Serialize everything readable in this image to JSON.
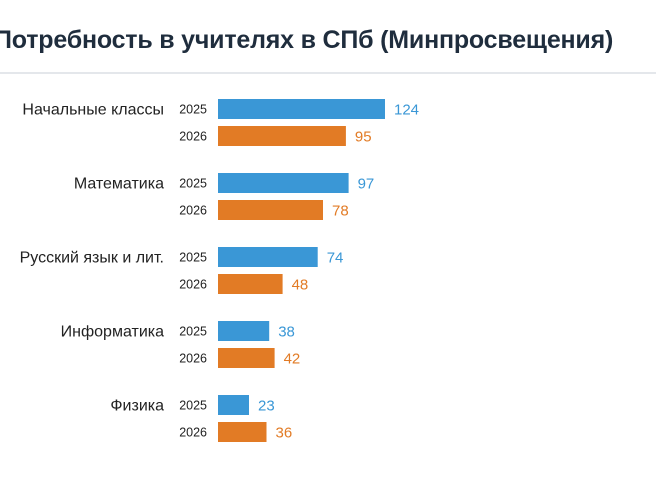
{
  "chart_data": {
    "type": "bar",
    "orientation": "horizontal",
    "title": "Потребность в учителях в СПб (Минпросвещения)",
    "categories": [
      "Начальные классы",
      "Математика",
      "Русский язык и лит.",
      "Информатика",
      "Физика"
    ],
    "series": [
      {
        "name": "2025",
        "color": "#3a97d6",
        "values": [
          124,
          97,
          74,
          38,
          23
        ]
      },
      {
        "name": "2026",
        "color": "#e27b25",
        "values": [
          95,
          78,
          48,
          42,
          36
        ]
      }
    ],
    "xlim": [
      0,
      124
    ],
    "grid": false,
    "legend": "none"
  }
}
